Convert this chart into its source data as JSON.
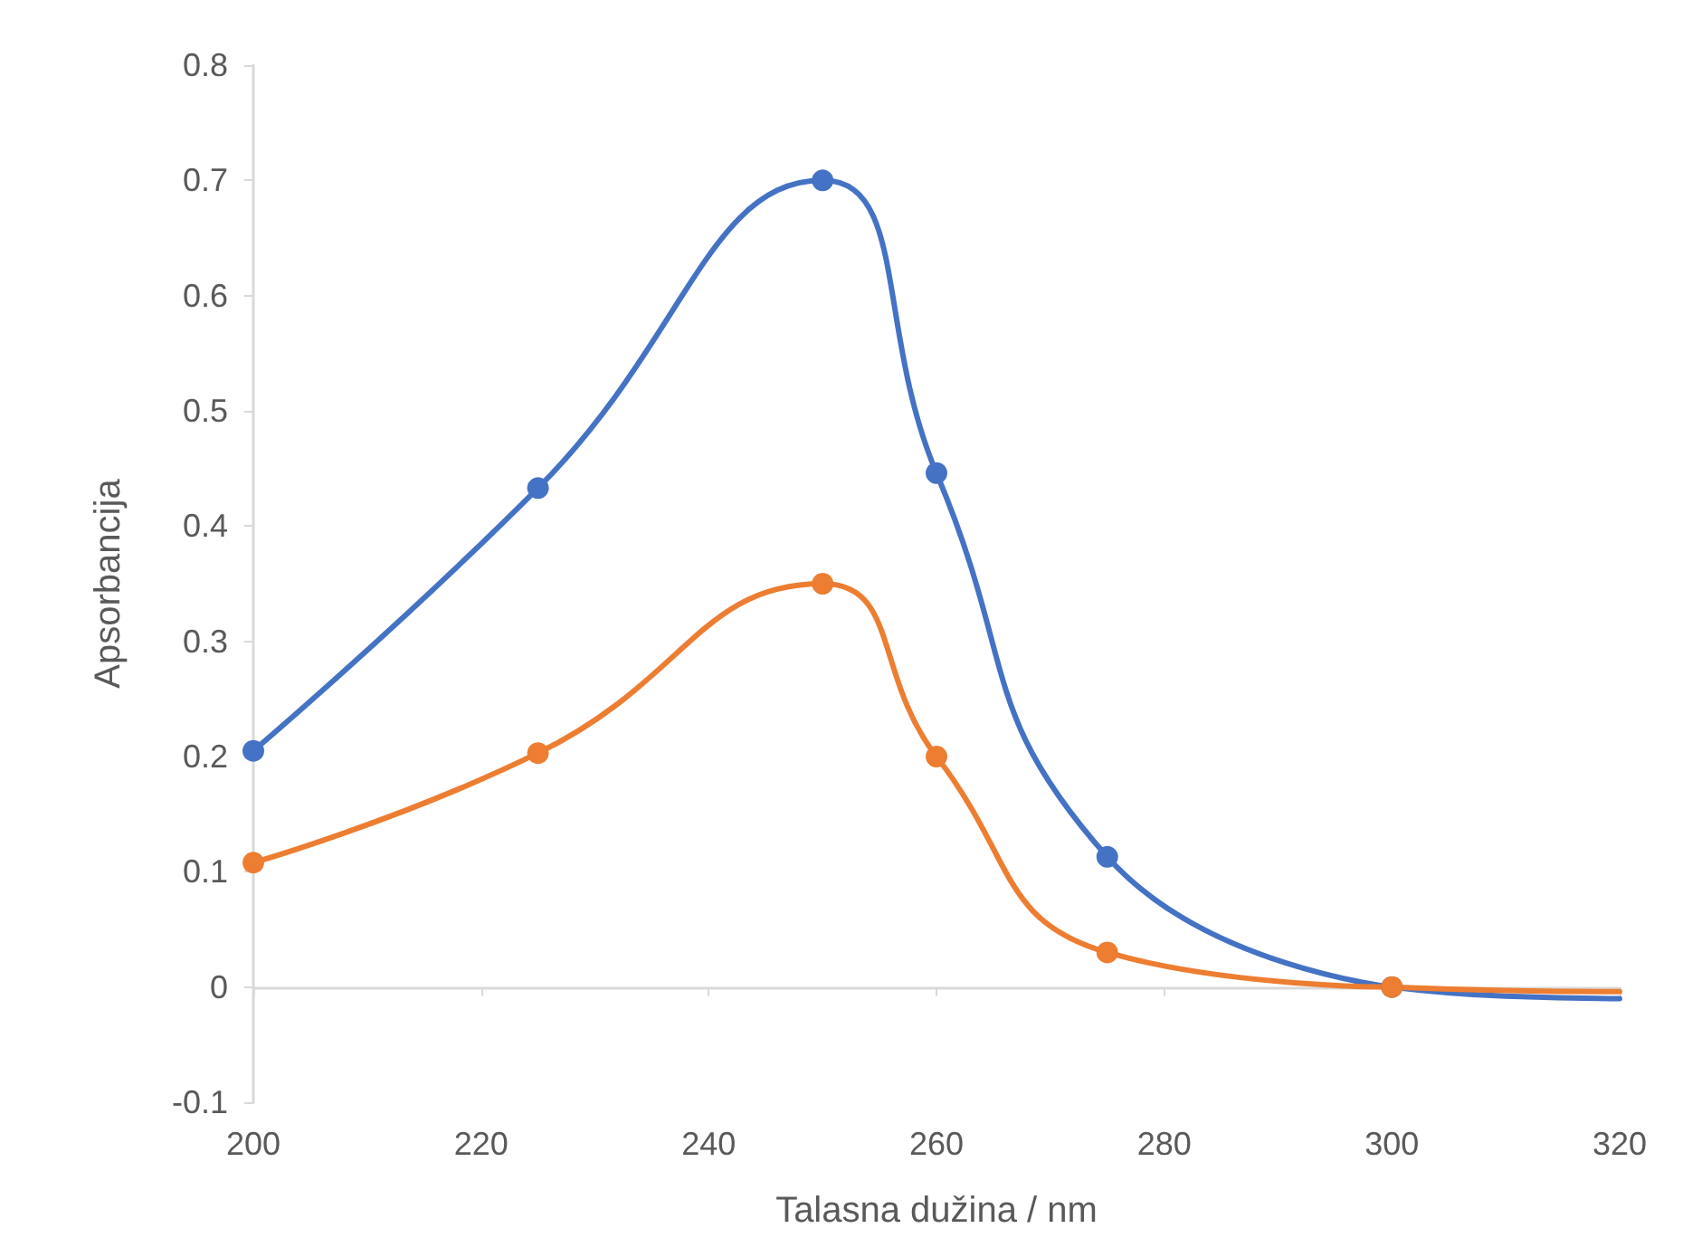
{
  "chart_data": {
    "type": "line",
    "xlabel": "Talasna dužina / nm",
    "ylabel": "Apsorbancija",
    "x": [
      200,
      225,
      250,
      260,
      275,
      300
    ],
    "series": [
      {
        "color": "#4472c4",
        "values": [
          0.205,
          0.433,
          0.7,
          0.446,
          0.113,
          0
        ]
      },
      {
        "color": "#ed7d31",
        "values": [
          0.108,
          0.203,
          0.35,
          0.2,
          0.03,
          0
        ]
      },
      {
        "color": "#4472c4",
        "x": [
          300,
          310,
          320
        ],
        "values": [
          0,
          -0.008,
          -0.01
        ],
        "marker": "none"
      },
      {
        "color": "#ed7d31",
        "x": [
          300,
          310,
          320
        ],
        "values": [
          0,
          -0.003,
          -0.004
        ],
        "marker": "none"
      }
    ],
    "xlim": [
      200,
      320
    ],
    "xticks": [
      200,
      220,
      240,
      260,
      280,
      300,
      320
    ],
    "ylim": [
      -0.1,
      0.8
    ],
    "yticks": [
      -0.1,
      0,
      0.1,
      0.2,
      0.3,
      0.4,
      0.5,
      0.6,
      0.7,
      0.8
    ],
    "marker": "circle",
    "line_style": "solid"
  }
}
